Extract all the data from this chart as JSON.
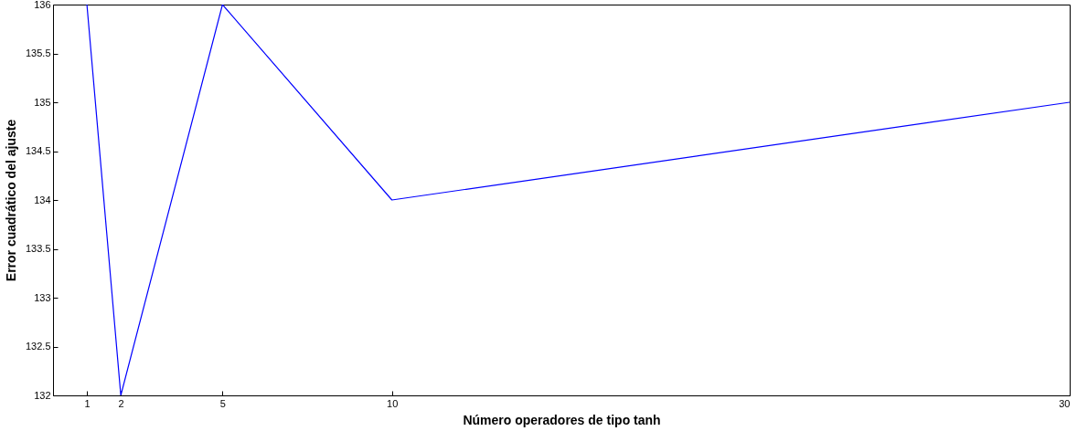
{
  "chart_data": {
    "type": "line",
    "xlabel": "Número operadores de tipo tanh",
    "ylabel": "Error cuadrático del ajuste",
    "x": [
      1,
      2,
      5,
      10,
      30
    ],
    "series": [
      {
        "color": "#0000ff",
        "values": [
          136,
          132,
          136,
          134,
          135
        ]
      }
    ],
    "xlim": [
      0,
      30
    ],
    "xticks": [
      1,
      2,
      5,
      10,
      30
    ],
    "ylim": [
      132,
      136
    ],
    "yticks": [
      132,
      132.5,
      133,
      133.5,
      134,
      134.5,
      135,
      135.5,
      136
    ],
    "grid": false
  }
}
